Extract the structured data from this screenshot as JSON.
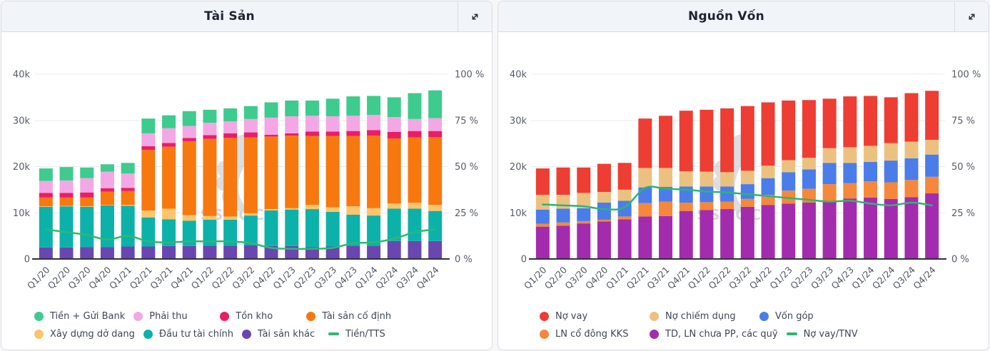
{
  "panels": [
    {
      "title": "Tài Sản",
      "expand_icon": "expand-diagonal-icon",
      "watermark": "SSTOCK"
    },
    {
      "title": "Nguồn Vốn",
      "expand_icon": "expand-diagonal-icon",
      "watermark": "SSTOCK"
    }
  ],
  "chart_data": [
    {
      "type": "bar",
      "stacked": true,
      "title": "Tài Sản",
      "categories": [
        "Q1/20",
        "Q2/20",
        "Q3/20",
        "Q4/20",
        "Q1/21",
        "Q2/21",
        "Q3/21",
        "Q4/21",
        "Q1/22",
        "Q2/22",
        "Q3/22",
        "Q4/22",
        "Q1/23",
        "Q2/23",
        "Q3/23",
        "Q4/23",
        "Q1/24",
        "Q2/24",
        "Q3/24",
        "Q4/24"
      ],
      "y_left": {
        "max": 40,
        "unit": "k",
        "ticks": [
          "0",
          "10k",
          "20k",
          "30k",
          "40k"
        ]
      },
      "y_right": {
        "max": 100,
        "unit": "%",
        "ticks": [
          "0 %",
          "25 %",
          "50 %",
          "75 %",
          "100 %"
        ]
      },
      "series": [
        {
          "key": "tai-san-khac",
          "name": "Tài sản khác",
          "color": "#6a47b0",
          "values": [
            2.5,
            2.5,
            2.6,
            2.6,
            2.7,
            2.7,
            2.8,
            2.8,
            2.9,
            2.9,
            3.0,
            2.8,
            2.8,
            2.6,
            2.7,
            2.9,
            2.9,
            3.9,
            3.9,
            3.9
          ]
        },
        {
          "key": "dau-tu-tai-chinh",
          "name": "Đầu tư tài chính",
          "color": "#0cb2a9",
          "values": [
            8.8,
            8.9,
            8.7,
            9.0,
            8.8,
            6.3,
            5.8,
            5.5,
            5.6,
            5.6,
            6.4,
            7.7,
            7.9,
            8.2,
            7.5,
            6.7,
            6.5,
            7.0,
            7.0,
            6.5
          ]
        },
        {
          "key": "xay-dung-do-dang",
          "name": "Xây dựng dở dang",
          "color": "#fbc56d",
          "values": [
            0.1,
            0.1,
            0.1,
            0.1,
            0.2,
            1.5,
            2.3,
            1.2,
            0.8,
            0.7,
            0.5,
            0.3,
            0.3,
            0.9,
            1.0,
            1.8,
            1.6,
            1.1,
            1.3,
            1.3
          ]
        },
        {
          "key": "tai-san-co-dinh",
          "name": "Tài sản cố định",
          "color": "#f7780f",
          "values": [
            1.9,
            1.8,
            1.9,
            2.9,
            3.0,
            13.1,
            13.4,
            16.0,
            16.7,
            17.0,
            16.4,
            15.7,
            15.7,
            14.9,
            15.4,
            15.2,
            15.7,
            14.1,
            14.1,
            14.7
          ]
        },
        {
          "key": "ton-kho",
          "name": "Tồn kho",
          "color": "#e91e63",
          "values": [
            1.0,
            1.0,
            1.1,
            0.7,
            0.7,
            0.8,
            0.8,
            0.7,
            0.8,
            1.0,
            1.1,
            0.4,
            0.5,
            1.0,
            1.0,
            1.1,
            1.2,
            1.4,
            1.4,
            1.3
          ]
        },
        {
          "key": "phai-thu",
          "name": "Phải thu",
          "color": "#f3a7e5",
          "values": [
            2.6,
            2.7,
            3.1,
            3.6,
            3.1,
            2.8,
            3.2,
            2.6,
            2.7,
            2.6,
            2.9,
            3.7,
            3.7,
            3.4,
            3.3,
            3.3,
            3.3,
            3.2,
            2.6,
            2.8
          ]
        },
        {
          "key": "tien-gui-bank",
          "name": "Tiền + Gửi Bank",
          "color": "#3ecb8e",
          "values": [
            2.7,
            2.9,
            2.3,
            1.6,
            2.3,
            3.2,
            2.8,
            3.2,
            2.8,
            2.8,
            2.8,
            3.3,
            3.4,
            3.3,
            3.8,
            4.2,
            4.1,
            4.3,
            5.6,
            6.0
          ]
        }
      ],
      "line": {
        "key": "tien-tts",
        "name": "Tiền/TTS",
        "color": "#2eb873",
        "axis": "right",
        "values_pct": [
          16,
          14.5,
          13,
          10.5,
          12.5,
          9.5,
          9,
          9.5,
          9.5,
          9.5,
          8.5,
          6,
          5.5,
          5.5,
          6,
          8.5,
          9,
          11,
          14.5,
          16
        ]
      },
      "legend_rows": [
        [
          {
            "key": "tien-gui-bank",
            "label": "Tiền + Gửi Bank",
            "marker": "dot",
            "color": "#3ecb8e"
          },
          {
            "key": "phai-thu",
            "label": "Phải thu",
            "marker": "dot",
            "color": "#f3a7e5"
          },
          {
            "key": "ton-kho",
            "label": "Tồn kho",
            "marker": "dot",
            "color": "#e91e63"
          },
          {
            "key": "tai-san-co-dinh",
            "label": "Tài sản cố định",
            "marker": "dot",
            "color": "#f7780f"
          }
        ],
        [
          {
            "key": "xay-dung-do-dang",
            "label": "Xây dựng dở dang",
            "marker": "dot",
            "color": "#fbc56d"
          },
          {
            "key": "dau-tu-tai-chinh",
            "label": "Đầu tư tài chính",
            "marker": "dot",
            "color": "#0cb2a9"
          },
          {
            "key": "tai-san-khac",
            "label": "Tài sản khác",
            "marker": "dot",
            "color": "#6a47b0"
          },
          {
            "key": "tien-tts",
            "label": "Tiền/TTS",
            "marker": "line",
            "color": "#2eb873"
          }
        ]
      ]
    },
    {
      "type": "bar",
      "stacked": true,
      "title": "Nguồn Vốn",
      "categories": [
        "Q1/20",
        "Q2/20",
        "Q3/20",
        "Q4/20",
        "Q1/21",
        "Q2/21",
        "Q3/21",
        "Q4/21",
        "Q1/22",
        "Q2/22",
        "Q3/22",
        "Q4/22",
        "Q1/23",
        "Q2/23",
        "Q3/23",
        "Q4/23",
        "Q1/24",
        "Q2/24",
        "Q3/24",
        "Q4/24"
      ],
      "y_left": {
        "max": 40,
        "unit": "k",
        "ticks": [
          "0",
          "10k",
          "20k",
          "30k",
          "40k"
        ]
      },
      "y_right": {
        "max": 100,
        "unit": "%",
        "ticks": [
          "0 %",
          "25 %",
          "50 %",
          "75 %",
          "100 %"
        ]
      },
      "series": [
        {
          "key": "td-ln-chua-pp",
          "name": "TD, LN chưa PP, các quỹ",
          "color": "#a32cae",
          "values": [
            7.0,
            7.2,
            7.7,
            8.1,
            8.6,
            9.2,
            9.3,
            10.4,
            10.6,
            10.8,
            11.3,
            11.7,
            12.0,
            12.2,
            12.6,
            13.1,
            13.3,
            13.0,
            13.4,
            14.2
          ]
        },
        {
          "key": "ln-co-dong-kks",
          "name": "LN cổ đông KKS",
          "color": "#f5883a",
          "values": [
            0.6,
            0.7,
            0.5,
            0.4,
            0.6,
            2.9,
            3.1,
            1.8,
            1.7,
            1.6,
            1.7,
            2.2,
            2.8,
            3.0,
            3.6,
            3.3,
            3.5,
            3.6,
            3.7,
            3.6
          ]
        },
        {
          "key": "von-gop",
          "name": "Vốn góp",
          "color": "#4a7dea",
          "values": [
            3.1,
            3.0,
            2.8,
            3.7,
            3.4,
            3.4,
            3.2,
            3.5,
            3.4,
            3.3,
            3.2,
            3.6,
            4.0,
            4.2,
            4.6,
            4.4,
            4.2,
            4.7,
            4.7,
            4.8
          ]
        },
        {
          "key": "no-chiem-dung",
          "name": "Nợ chiếm dụng",
          "color": "#ecc180",
          "values": [
            3.2,
            3.0,
            3.3,
            2.3,
            2.4,
            4.2,
            4.1,
            3.3,
            3.2,
            3.1,
            2.9,
            2.7,
            2.6,
            2.5,
            3.2,
            3.4,
            3.5,
            3.8,
            3.6,
            3.2
          ]
        },
        {
          "key": "no-vay",
          "name": "Nợ vay",
          "color": "#ee3d33",
          "values": [
            5.7,
            5.9,
            5.5,
            6.1,
            5.8,
            10.7,
            11.3,
            13.1,
            13.4,
            13.8,
            14.0,
            13.7,
            12.9,
            12.5,
            10.7,
            11.0,
            10.8,
            9.9,
            10.5,
            10.6
          ]
        }
      ],
      "line": {
        "key": "no-vay-tnv",
        "name": "Nợ vay/TNV",
        "color": "#2bb673",
        "axis": "right",
        "values_pct": [
          29.5,
          29,
          28.5,
          27,
          28,
          38.5,
          38,
          37.5,
          36.5,
          36,
          35,
          34,
          33,
          32,
          31,
          31.5,
          30,
          29,
          30.5,
          29
        ]
      },
      "legend_rows": [
        [
          {
            "key": "no-vay",
            "label": "Nợ vay",
            "marker": "dot",
            "color": "#ee3d33"
          },
          {
            "key": "no-chiem-dung",
            "label": "Nợ chiếm dụng",
            "marker": "dot",
            "color": "#ecc180"
          },
          {
            "key": "von-gop",
            "label": "Vốn góp",
            "marker": "dot",
            "color": "#4a7dea"
          }
        ],
        [
          {
            "key": "ln-co-dong-kks",
            "label": "LN cổ đông KKS",
            "marker": "dot",
            "color": "#f5883a"
          },
          {
            "key": "td-ln-chua-pp",
            "label": "TD, LN chưa PP, các quỹ",
            "marker": "dot",
            "color": "#a32cae"
          },
          {
            "key": "no-vay-tnv",
            "label": "Nợ vay/TNV",
            "marker": "line",
            "color": "#2bb673"
          }
        ]
      ]
    }
  ]
}
